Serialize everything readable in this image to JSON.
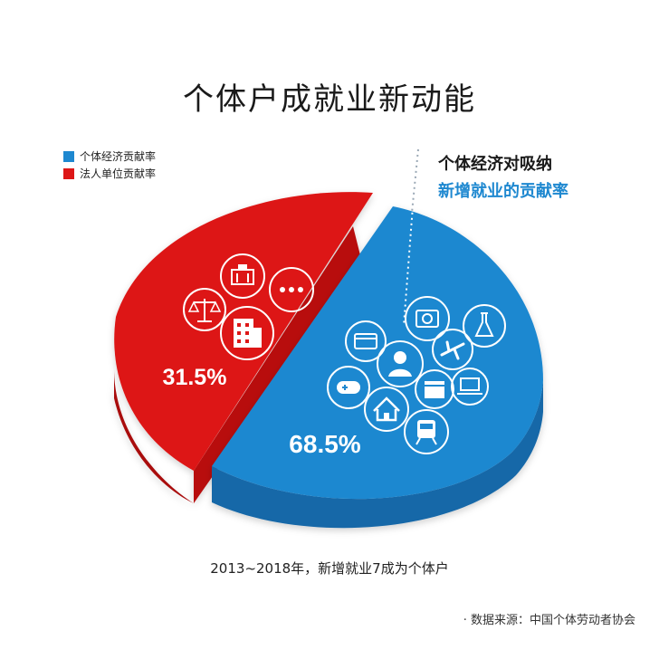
{
  "title": "个体户成就业新动能",
  "annotation": {
    "line1": "个体经济对吸纳",
    "line2": "新增就业的贡献率"
  },
  "subtitle": "2013~2018年，新增就业7成为个体户",
  "source": "· 数据来源：中国个体劳动者协会",
  "colors": {
    "blue": "#1e88d0",
    "red": "#dd1717"
  },
  "chart_data": {
    "type": "pie",
    "title": "个体户成就业新动能",
    "legend_position": "top-left",
    "series": [
      {
        "name": "个体经济贡献率",
        "value": 68.5,
        "label": "68.5%",
        "color": "#1e88d0",
        "icons": [
          "camera-icon",
          "flask-icon",
          "credit-card-icon",
          "person-icon",
          "airplane-icon",
          "gamepad-icon",
          "clapperboard-icon",
          "laptop-icon",
          "home-icon",
          "train-icon"
        ]
      },
      {
        "name": "法人单位贡献率",
        "value": 31.5,
        "label": "31.5%",
        "color": "#dd1717",
        "icons": [
          "bank-icon",
          "more-icon",
          "scales-icon",
          "office-building-icon"
        ]
      }
    ]
  }
}
